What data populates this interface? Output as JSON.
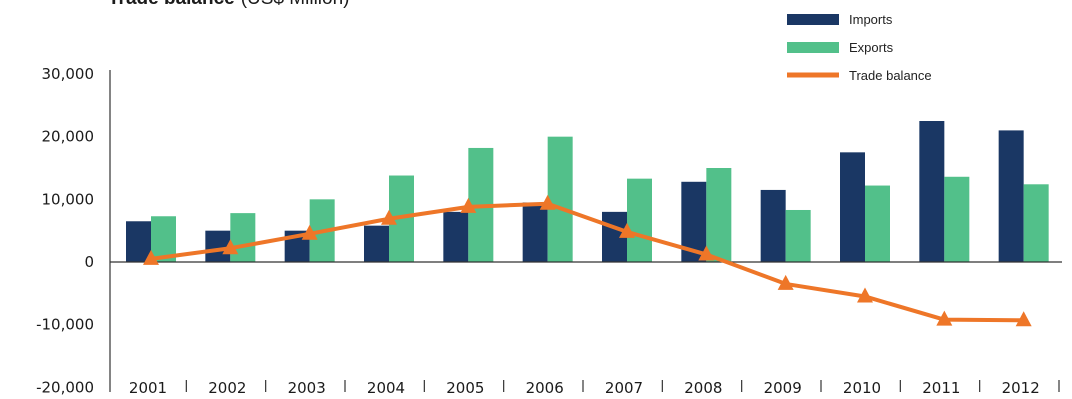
{
  "chart_data": {
    "type": "bar",
    "title": "Trade balance",
    "title_unit": "(US$ Million)",
    "categories": [
      "2001",
      "2002",
      "2003",
      "2004",
      "2005",
      "2006",
      "2007",
      "2008",
      "2009",
      "2010",
      "2011",
      "2012"
    ],
    "series": [
      {
        "name": "Imports",
        "type": "bar",
        "color": "#1a3764",
        "values": [
          6500,
          5000,
          5000,
          5800,
          8000,
          9500,
          8000,
          12800,
          11500,
          17500,
          22500,
          21000
        ]
      },
      {
        "name": "Exports",
        "type": "bar",
        "color": "#52c08a",
        "values": [
          7300,
          7800,
          10000,
          13800,
          18200,
          20000,
          13300,
          15000,
          8300,
          12200,
          13600,
          12400
        ]
      },
      {
        "name": "Trade balance",
        "type": "line",
        "marker": "triangle",
        "color": "#ee7628",
        "values": [
          500,
          2200,
          4500,
          6900,
          8800,
          9300,
          4800,
          1200,
          -3500,
          -5500,
          -9200,
          -9300
        ]
      }
    ],
    "y_ticks": [
      "30,000",
      "20,000",
      "10,000",
      "0",
      "-10,000",
      "-20,000"
    ],
    "y_tick_values": [
      30000,
      20000,
      10000,
      0,
      -10000,
      -20000
    ],
    "ylim": [
      -20000,
      30000
    ],
    "legend": "top-right",
    "grid": false
  }
}
